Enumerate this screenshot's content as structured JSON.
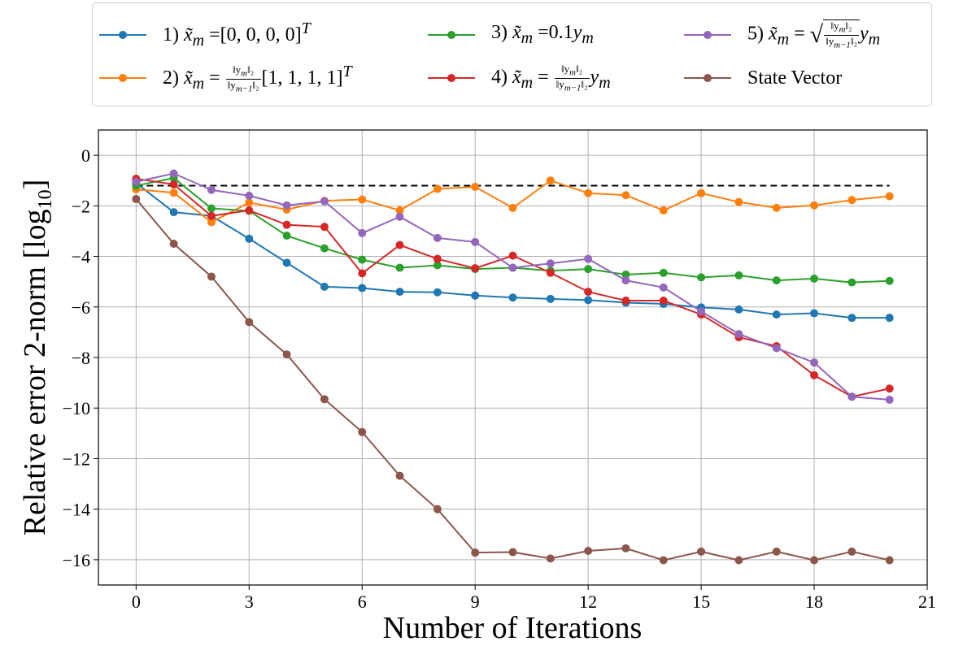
{
  "colors": {
    "series1": "#1f77b4",
    "series2": "#ff7f0e",
    "series3": "#2ca02c",
    "series4": "#d62728",
    "series5": "#9467bd",
    "series6": "#8c564b",
    "reference": "#000000",
    "grid": "#b0b0b0"
  },
  "legend": {
    "items": [
      {
        "prefix": "1)",
        "var": "x̃",
        "sub": "m",
        "eq": "=",
        "body": "[0, 0, 0, 0]",
        "sup": "T"
      },
      {
        "prefix": "2)",
        "var": "x̃",
        "sub": "m",
        "eq": "=",
        "frac_num": "‖y",
        "frac_num_sub": "m",
        "frac_num_tail": "‖₂",
        "frac_den": "‖y",
        "frac_den_sub": "m−1",
        "frac_den_tail": "‖₂",
        "body": "[1, 1, 1, 1]",
        "sup": "T"
      },
      {
        "prefix": "3)",
        "var": "x̃",
        "sub": "m",
        "eq": "=",
        "body": "0.1",
        "tail_var": "y",
        "tail_sub": "m"
      },
      {
        "prefix": "4)",
        "var": "x̃",
        "sub": "m",
        "eq": "=",
        "frac_num": "‖y",
        "frac_num_sub": "m",
        "frac_num_tail": "‖₂",
        "frac_den": "‖y",
        "frac_den_sub": "m−1",
        "frac_den_tail": "‖₂",
        "tail_var": "y",
        "tail_sub": "m"
      },
      {
        "prefix": "5)",
        "var": "x̃",
        "sub": "m",
        "eq": "=",
        "sqrt_symbol": "√",
        "frac_num": "‖y",
        "frac_num_sub": "m",
        "frac_num_tail": "‖₂",
        "frac_den": "‖y",
        "frac_den_sub": "m−1",
        "frac_den_tail": "‖₂",
        "tail_var": "y",
        "tail_sub": "m"
      },
      {
        "label": "State Vector"
      }
    ]
  },
  "chart_data": {
    "type": "line",
    "title": "",
    "xlabel": "Number of Iterations",
    "ylabel": "Relative error 2-norm [log",
    "ylabel_sub": "10",
    "ylabel_tail": "]",
    "xlim": [
      -1,
      21
    ],
    "ylim": [
      -17,
      1
    ],
    "xticks": [
      0,
      3,
      6,
      9,
      12,
      15,
      18,
      21
    ],
    "yticks": [
      0,
      -2,
      -4,
      -6,
      -8,
      -10,
      -12,
      -14,
      -16
    ],
    "ytick_labels": [
      "0",
      "−2",
      "−4",
      "−6",
      "−8",
      "−10",
      "−12",
      "−14",
      "−16"
    ],
    "grid": true,
    "legend_position": "top-center",
    "x": [
      0,
      1,
      2,
      3,
      4,
      5,
      6,
      7,
      8,
      9,
      10,
      11,
      12,
      13,
      14,
      15,
      16,
      17,
      18,
      19,
      20
    ],
    "reference_line": {
      "y": -1.2,
      "x_range": [
        0,
        20
      ],
      "style": "dashed"
    },
    "series": [
      {
        "name": "1) x̃m = [0,0,0,0]^T",
        "values": [
          -1.1,
          -2.25,
          -2.4,
          -3.3,
          -4.25,
          -5.2,
          -5.25,
          -5.4,
          -5.42,
          -5.55,
          -5.63,
          -5.68,
          -5.73,
          -5.83,
          -5.88,
          -6.02,
          -6.1,
          -6.3,
          -6.25,
          -6.43,
          -6.43
        ]
      },
      {
        "name": "2) x̃m = ‖ym‖2/‖ym−1‖2 [1,1,1,1]^T",
        "values": [
          -1.35,
          -1.48,
          -2.65,
          -1.87,
          -2.15,
          -1.8,
          -1.75,
          -2.18,
          -1.33,
          -1.25,
          -2.08,
          -1.0,
          -1.5,
          -1.58,
          -2.18,
          -1.5,
          -1.85,
          -2.08,
          -1.98,
          -1.77,
          -1.62
        ]
      },
      {
        "name": "3) x̃m = 0.1ym",
        "values": [
          -1.2,
          -0.9,
          -2.1,
          -2.2,
          -3.18,
          -3.68,
          -4.13,
          -4.45,
          -4.35,
          -4.5,
          -4.45,
          -4.57,
          -4.5,
          -4.72,
          -4.65,
          -4.83,
          -4.75,
          -4.95,
          -4.88,
          -5.03,
          -4.97
        ]
      },
      {
        "name": "4) x̃m = ‖ym‖2/‖ym−1‖2 ym",
        "values": [
          -0.93,
          -1.15,
          -2.4,
          -2.18,
          -2.75,
          -2.83,
          -4.67,
          -3.55,
          -4.1,
          -4.47,
          -3.97,
          -4.65,
          -5.4,
          -5.75,
          -5.75,
          -6.3,
          -7.2,
          -7.55,
          -8.7,
          -9.55,
          -9.23
        ]
      },
      {
        "name": "5) x̃m = sqrt(‖ym‖2/‖ym−1‖2) ym",
        "values": [
          -1.05,
          -0.72,
          -1.37,
          -1.6,
          -1.98,
          -1.82,
          -3.08,
          -2.43,
          -3.27,
          -3.43,
          -4.45,
          -4.28,
          -4.1,
          -4.95,
          -5.23,
          -6.18,
          -7.07,
          -7.63,
          -8.2,
          -9.55,
          -9.67
        ]
      },
      {
        "name": "State Vector",
        "values": [
          -1.73,
          -3.5,
          -4.8,
          -6.6,
          -7.88,
          -9.65,
          -10.95,
          -12.68,
          -14.0,
          -15.72,
          -15.7,
          -15.95,
          -15.65,
          -15.55,
          -16.02,
          -15.68,
          -16.02,
          -15.68,
          -16.02,
          -15.68,
          -16.02
        ]
      }
    ]
  }
}
